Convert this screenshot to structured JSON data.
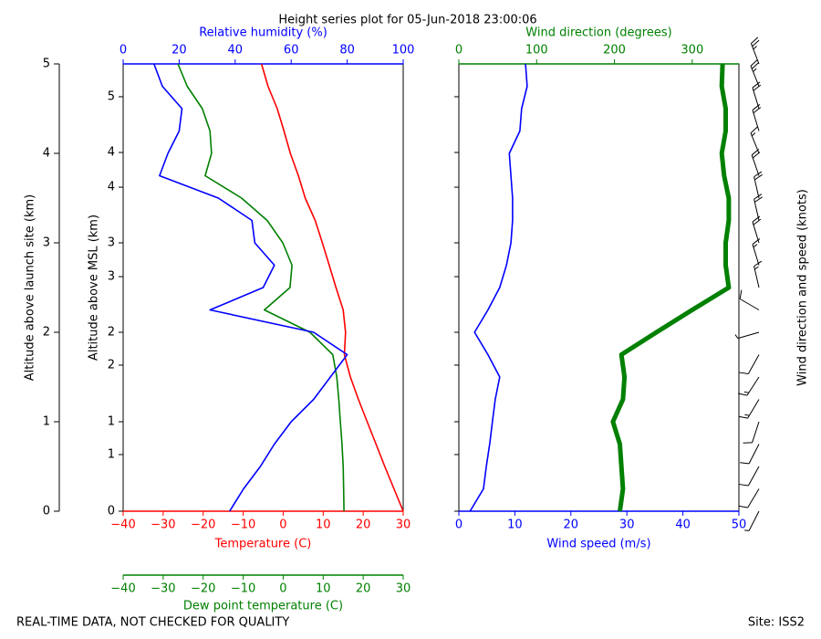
{
  "title": "Height series plot for 05-Jun-2018 23:00:06",
  "footer_left": "REAL-TIME DATA, NOT CHECKED FOR QUALITY",
  "footer_right": "Site: ISS2",
  "chart_data": [
    {
      "type": "line",
      "altitude": [
        0,
        0.25,
        0.5,
        0.75,
        1,
        1.25,
        1.5,
        1.75,
        2,
        2.25,
        2.5,
        2.75,
        3,
        3.25,
        3.5,
        3.75,
        4,
        4.25,
        4.5,
        4.75,
        5
      ],
      "ylim": [
        0,
        5
      ],
      "yticks": [
        0,
        1,
        2,
        3,
        4,
        5
      ],
      "y_label": "Altitude above launch site (km)",
      "y2_label": "Altitude above MSL (km)",
      "y2ticks": [
        {
          "value": 0,
          "label": "0"
        },
        {
          "value": 0.633,
          "label": "1"
        },
        {
          "value": 1,
          "label": "1"
        },
        {
          "value": 1.633,
          "label": "2"
        },
        {
          "value": 2,
          "label": "2"
        },
        {
          "value": 2.622,
          "label": "3"
        },
        {
          "value": 3,
          "label": "3"
        },
        {
          "value": 3.622,
          "label": "4"
        },
        {
          "value": 4.01,
          "label": "4"
        },
        {
          "value": 4.633,
          "label": "5"
        }
      ],
      "xlim": [
        -40,
        30
      ],
      "xticks": [
        {
          "value": -40,
          "label": "−40"
        },
        {
          "value": -30,
          "label": "−30"
        },
        {
          "value": -20,
          "label": "−20"
        },
        {
          "value": -10,
          "label": "−10"
        },
        0,
        10,
        20,
        30
      ],
      "x_label": "Temperature (C)",
      "x_color": "#ff0000",
      "x2lim": [
        0,
        100
      ],
      "x2ticks": [
        0,
        20,
        40,
        60,
        80,
        100
      ],
      "x2_label": "Relative humidity (%)",
      "x2_color": "#0000ff",
      "x3lim": [
        -40,
        30
      ],
      "x3ticks": [
        {
          "value": -40,
          "label": "−40"
        },
        {
          "value": -30,
          "label": "−30"
        },
        {
          "value": -20,
          "label": "−20"
        },
        {
          "value": -10,
          "label": "−10"
        },
        0,
        10,
        20,
        30
      ],
      "x3_label": "Dew point temperature (C)",
      "x3_color": "#008000",
      "series": [
        {
          "axis": "x",
          "color": "#ff0000",
          "values": [
            30,
            27.7,
            25.4,
            23.2,
            21,
            18.8,
            16.8,
            15.3,
            15.6,
            15,
            13.2,
            11.5,
            9.8,
            8,
            5.5,
            3.8,
            1.8,
            0.2,
            -1.5,
            -3.8,
            -5.4
          ]
        },
        {
          "axis": "x3",
          "color": "#008000",
          "values": [
            15.2,
            15.1,
            15,
            14.7,
            14.3,
            13.9,
            13.4,
            12.4,
            6.7,
            -4.7,
            1.7,
            2.2,
            -0.1,
            -4,
            -10.4,
            -19.5,
            -17.9,
            -18.3,
            -20.2,
            -24,
            -26.3
          ]
        },
        {
          "axis": "x2",
          "color": "#0000ff",
          "values": [
            38,
            43,
            49,
            54,
            60,
            68,
            74,
            80,
            68,
            31,
            50,
            54,
            47,
            46,
            34,
            13,
            16,
            20,
            21,
            14,
            11
          ]
        }
      ]
    },
    {
      "type": "line",
      "altitude": [
        0,
        0.25,
        0.5,
        0.75,
        1,
        1.25,
        1.5,
        1.75,
        2,
        2.25,
        2.5,
        2.75,
        3,
        3.25,
        3.5,
        3.75,
        4,
        4.25,
        4.5,
        4.75,
        5
      ],
      "ylim": [
        0,
        5
      ],
      "xlim": [
        0,
        50
      ],
      "xticks": [
        0,
        10,
        20,
        30,
        40,
        50
      ],
      "x_label": "Wind speed (m/s)",
      "x_color": "#0000ff",
      "x2lim": [
        0,
        360
      ],
      "x2ticks": [
        0,
        100,
        200,
        300
      ],
      "x2_label": "Wind direction (degrees)",
      "x2_color": "#008000",
      "barbs_label": "Wind direction and speed (knots)",
      "series": [
        {
          "axis": "x",
          "color": "#0000ff",
          "values": [
            2,
            4.4,
            4.9,
            5.5,
            6,
            6.5,
            7.3,
            5.2,
            2.8,
            5.2,
            7.3,
            8.5,
            9.3,
            9.6,
            9.6,
            9.3,
            9,
            10.9,
            11.2,
            12.2,
            11.9
          ]
        },
        {
          "axis": "x2",
          "color": "#008000",
          "values": [
            207,
            211,
            209,
            207,
            198,
            211,
            213,
            209,
            254,
            300,
            347,
            343,
            343,
            347,
            347,
            341,
            338,
            343,
            343,
            338,
            339
          ]
        }
      ]
    }
  ]
}
